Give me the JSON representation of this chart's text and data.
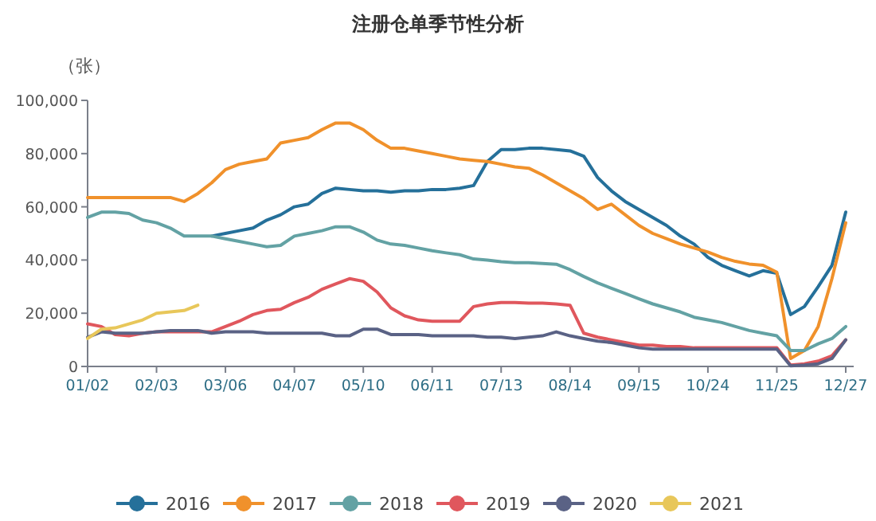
{
  "chart_data": {
    "type": "line",
    "title": "注册仓单季节性分析",
    "ylabel": "（张）",
    "categories": [
      "01/02",
      null,
      null,
      null,
      null,
      "02/03",
      null,
      null,
      null,
      null,
      "03/06",
      null,
      null,
      null,
      null,
      "04/07",
      null,
      null,
      null,
      null,
      "05/10",
      null,
      null,
      null,
      null,
      "06/11",
      null,
      null,
      null,
      null,
      "07/13",
      null,
      null,
      null,
      null,
      "08/14",
      null,
      null,
      null,
      null,
      "09/15",
      null,
      null,
      null,
      null,
      "10/24",
      null,
      null,
      null,
      null,
      "11/25",
      null,
      null,
      null,
      null,
      "12/27"
    ],
    "ylim": [
      0,
      100000
    ],
    "yticks": [
      0,
      {
        "value": 20000,
        "label": "20,000"
      },
      {
        "value": 40000,
        "label": "40,000"
      },
      {
        "value": 60000,
        "label": "60,000"
      },
      {
        "value": 80000,
        "label": "80,000"
      },
      {
        "value": 100000,
        "label": "100,000"
      }
    ],
    "legend": "bottom",
    "grid": false,
    "series": [
      {
        "name": "2016",
        "color": "#25709a",
        "values": [
          null,
          null,
          null,
          null,
          null,
          null,
          null,
          null,
          null,
          49000,
          50000,
          51000,
          52000,
          55000,
          57000,
          60000,
          61000,
          65000,
          67000,
          66500,
          66000,
          66000,
          65500,
          66000,
          66000,
          66500,
          66500,
          67000,
          68000,
          77000,
          81500,
          81500,
          82000,
          82000,
          81500,
          81000,
          79000,
          71000,
          66000,
          62000,
          59000,
          56000,
          53000,
          49000,
          46000,
          41000,
          38000,
          36000,
          34000,
          36000,
          35000,
          19500,
          22500,
          30000,
          38000,
          58000
        ]
      },
      {
        "name": "2017",
        "color": "#f0912b",
        "values": [
          63500,
          63500,
          63500,
          63500,
          63500,
          63500,
          63500,
          62000,
          65000,
          69000,
          74000,
          76000,
          77000,
          78000,
          84000,
          85000,
          86000,
          89000,
          91500,
          91500,
          89000,
          85000,
          82000,
          82000,
          81000,
          80000,
          79000,
          78000,
          77500,
          77000,
          76000,
          75000,
          74500,
          72000,
          69000,
          66000,
          63000,
          59000,
          61000,
          57000,
          53000,
          50000,
          48000,
          46000,
          44500,
          43000,
          41000,
          39500,
          38500,
          38000,
          35400,
          3000,
          6000,
          15000,
          33000,
          54000
        ]
      },
      {
        "name": "2018",
        "color": "#63a2a4",
        "values": [
          56000,
          58000,
          58000,
          57500,
          55000,
          54000,
          52000,
          49000,
          49000,
          49000,
          48000,
          47000,
          46000,
          45000,
          45500,
          49000,
          50000,
          51000,
          52500,
          52500,
          50500,
          47500,
          46000,
          45500,
          44500,
          43500,
          42700,
          42000,
          40400,
          40000,
          39400,
          39000,
          39000,
          38700,
          38400,
          36400,
          33800,
          31400,
          29400,
          27400,
          25400,
          23500,
          22000,
          20500,
          18500,
          17500,
          16500,
          15000,
          13500,
          12500,
          11500,
          6000,
          6000,
          8500,
          10500,
          15000
        ]
      },
      {
        "name": "2019",
        "color": "#e0575d",
        "values": [
          16000,
          15000,
          12000,
          11500,
          12500,
          13000,
          13000,
          13000,
          13000,
          13000,
          15000,
          17000,
          19500,
          21000,
          21500,
          24000,
          26000,
          29000,
          31000,
          33000,
          32000,
          28000,
          22000,
          19000,
          17500,
          17000,
          17000,
          17000,
          22500,
          23500,
          24000,
          24000,
          23800,
          23800,
          23500,
          23000,
          12500,
          11000,
          10000,
          9000,
          8000,
          8000,
          7500,
          7500,
          7000,
          7000,
          7000,
          7000,
          7000,
          7000,
          7000,
          500,
          1000,
          2000,
          4000,
          10000
        ]
      },
      {
        "name": "2020",
        "color": "#5a6285",
        "values": [
          11000,
          13000,
          12500,
          12500,
          12500,
          13000,
          13500,
          13500,
          13500,
          12500,
          13000,
          13000,
          13000,
          12500,
          12500,
          12500,
          12500,
          12500,
          11500,
          11500,
          14000,
          14000,
          12000,
          12000,
          12000,
          11500,
          11500,
          11500,
          11500,
          11000,
          11000,
          10500,
          11000,
          11500,
          13000,
          11500,
          10500,
          9500,
          9000,
          8000,
          7000,
          6500,
          6500,
          6500,
          6500,
          6500,
          6500,
          6500,
          6500,
          6500,
          6500,
          200,
          500,
          1000,
          3000,
          10000
        ]
      },
      {
        "name": "2021",
        "color": "#e8c75a",
        "values": [
          10500,
          14000,
          14500,
          16000,
          17500,
          20000,
          20500,
          21000,
          23000,
          null,
          null,
          null,
          null,
          null,
          null,
          null,
          null,
          null,
          null,
          null,
          null,
          null,
          null,
          null,
          null,
          null,
          null,
          null,
          null,
          null,
          null,
          null,
          null,
          null,
          null,
          null,
          null,
          null,
          null,
          null,
          null,
          null,
          null,
          null,
          null,
          null,
          null,
          null,
          null,
          null,
          null,
          null,
          null,
          null,
          null,
          null
        ]
      }
    ]
  }
}
